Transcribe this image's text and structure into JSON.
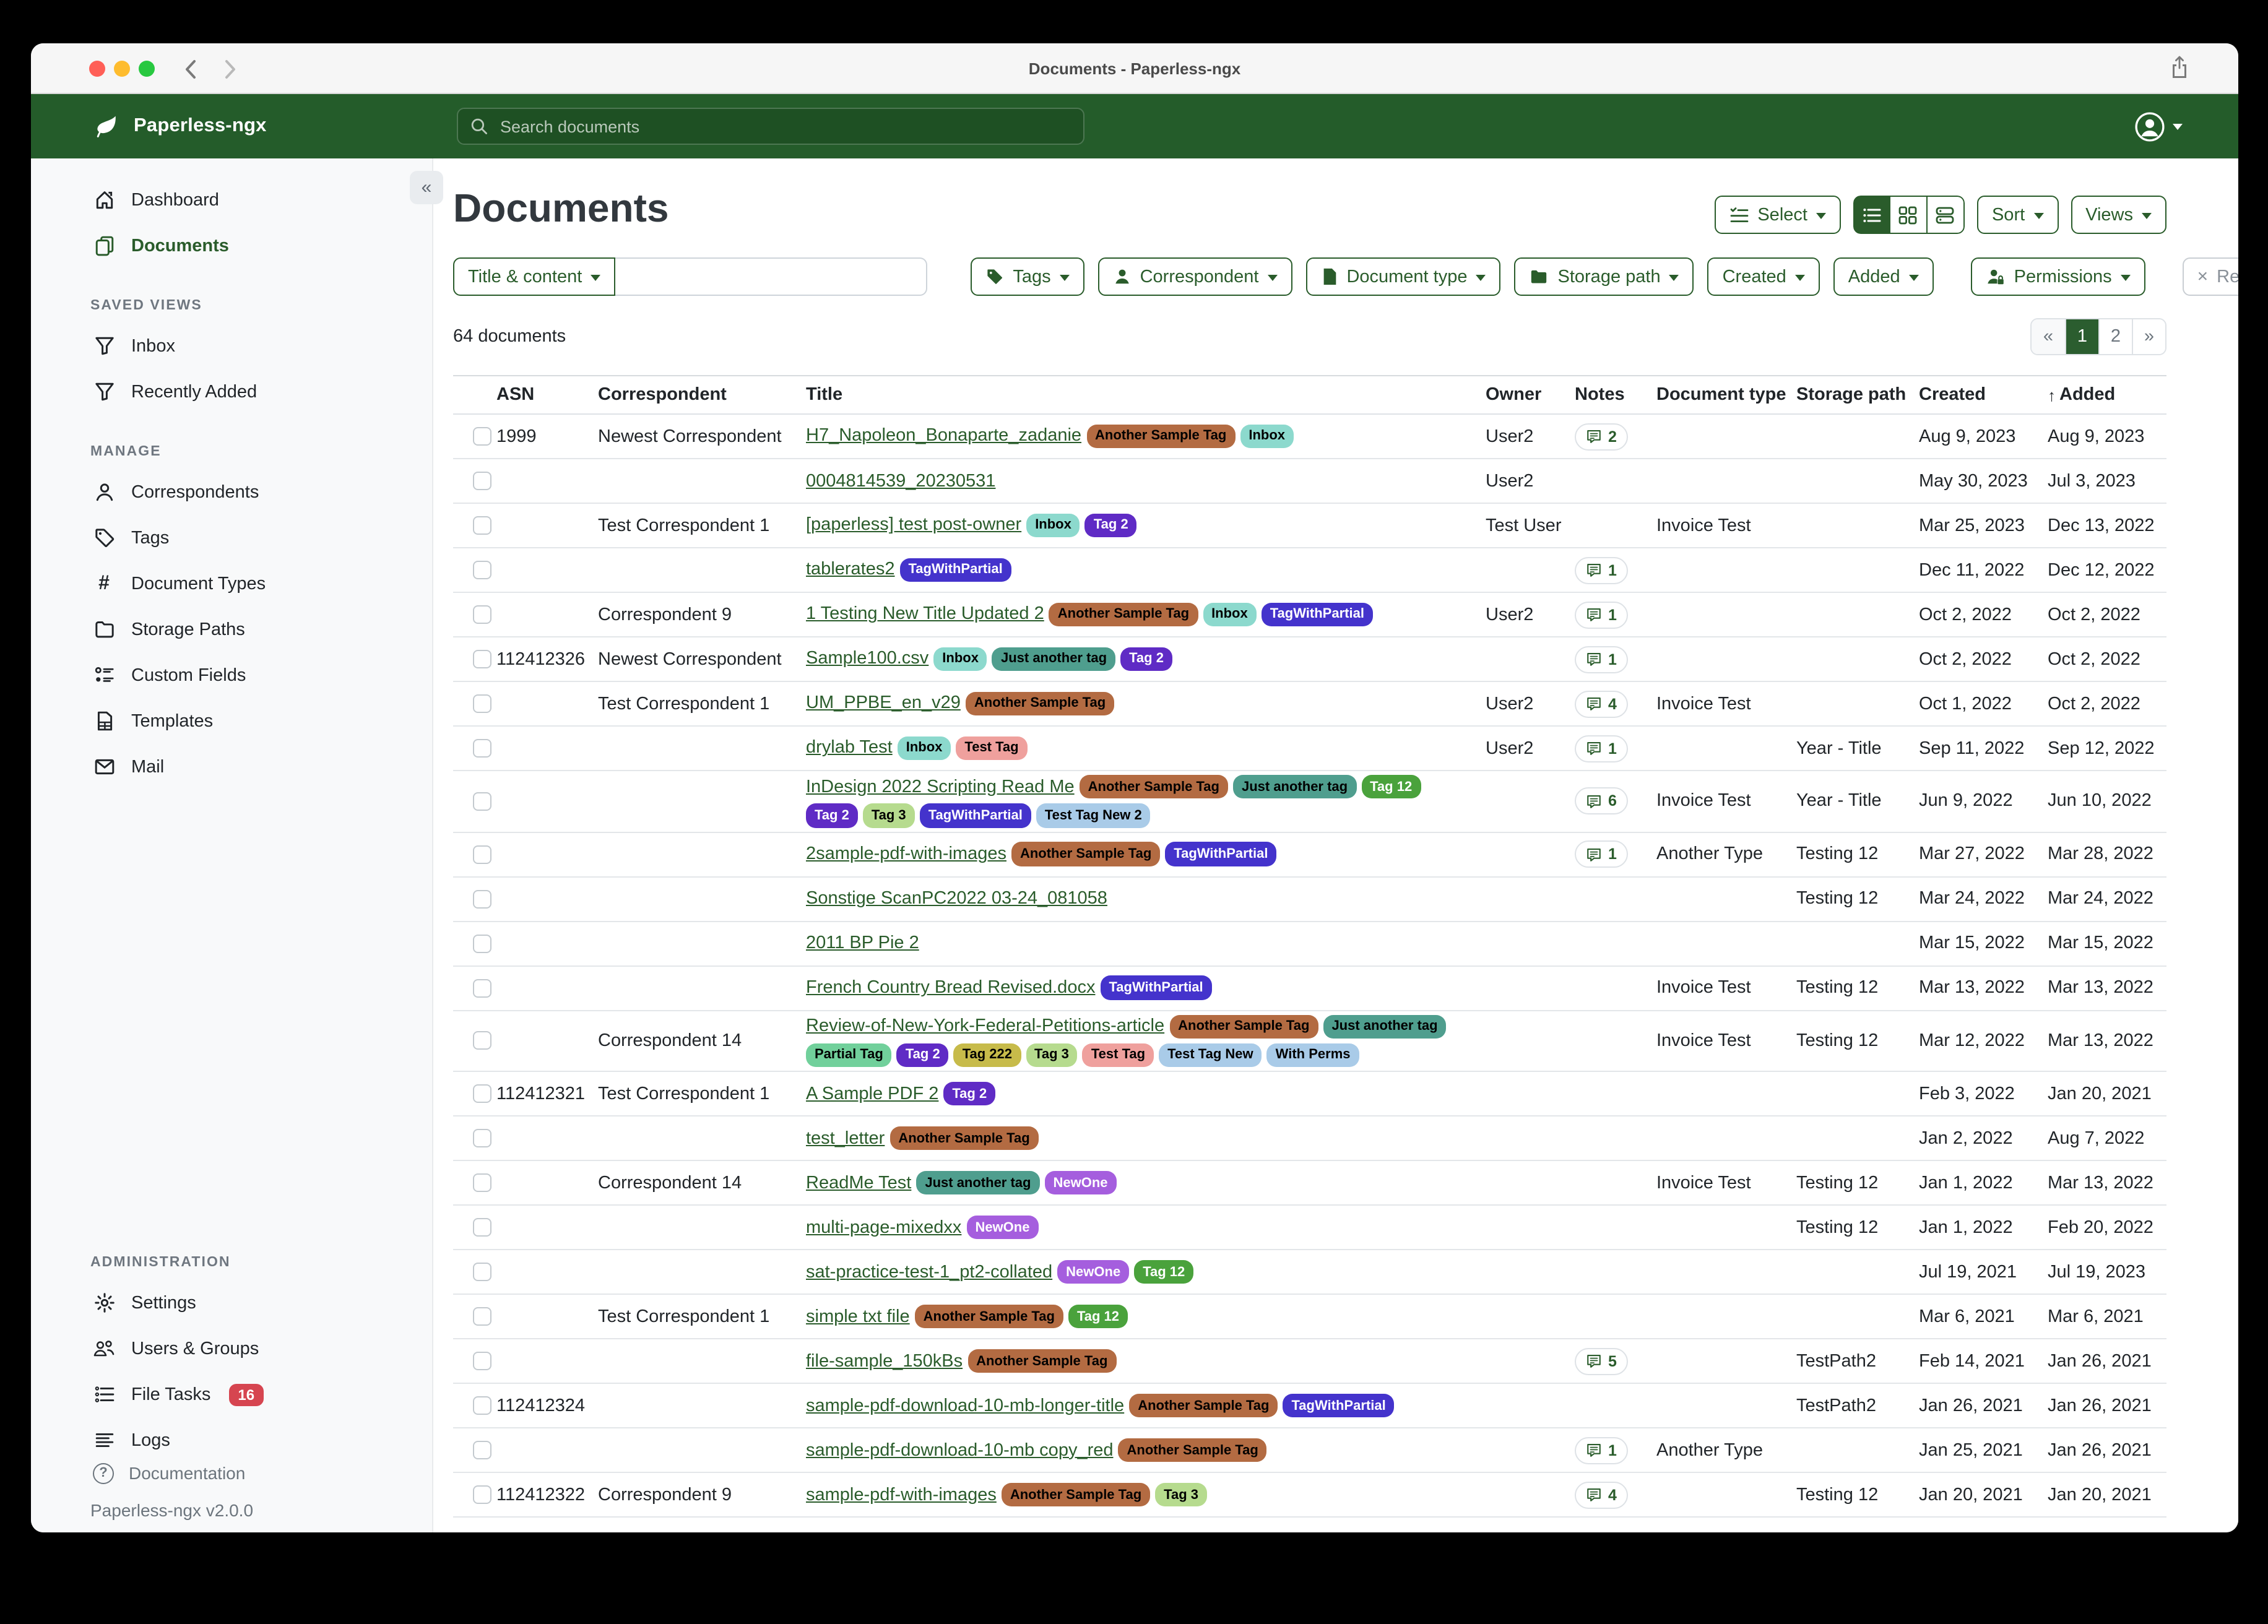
{
  "colors": {
    "accent_green": "#2a5c2b",
    "navbar_green": "#245c2a",
    "badge_red": "#d64550",
    "traffic_red": "#ff5f57",
    "traffic_yellow": "#febc2e",
    "traffic_green": "#28c840"
  },
  "titlebar": {
    "title": "Documents - Paperless-ngx",
    "back_icon": "chevron-left",
    "forward_icon": "chevron-right",
    "share_icon": "share"
  },
  "navbar": {
    "brand": "Paperless-ngx",
    "logo_icon": "leaf",
    "search_placeholder": "Search documents",
    "search_icon": "search",
    "user_icon": "person-circle"
  },
  "sidebar": {
    "collapse_icon": "«",
    "sections": [
      {
        "header": "",
        "items": [
          {
            "label": "Dashboard",
            "icon": "home"
          },
          {
            "label": "Documents",
            "icon": "copy",
            "active": true
          }
        ]
      },
      {
        "header": "SAVED VIEWS",
        "items": [
          {
            "label": "Inbox",
            "icon": "funnel"
          },
          {
            "label": "Recently Added",
            "icon": "funnel"
          }
        ]
      },
      {
        "header": "MANAGE",
        "items": [
          {
            "label": "Correspondents",
            "icon": "person"
          },
          {
            "label": "Tags",
            "icon": "tag"
          },
          {
            "label": "Document Types",
            "icon": "hash"
          },
          {
            "label": "Storage Paths",
            "icon": "folder"
          },
          {
            "label": "Custom Fields",
            "icon": "fields"
          },
          {
            "label": "Templates",
            "icon": "file"
          },
          {
            "label": "Mail",
            "icon": "mail"
          }
        ]
      },
      {
        "header": "ADMINISTRATION",
        "admin": true,
        "items": [
          {
            "label": "Settings",
            "icon": "gear"
          },
          {
            "label": "Users & Groups",
            "icon": "users"
          },
          {
            "label": "File Tasks",
            "icon": "tasks",
            "badge": "16"
          },
          {
            "label": "Logs",
            "icon": "logs"
          }
        ]
      }
    ],
    "footer": {
      "documentation": "Documentation",
      "version": "Paperless-ngx v2.0.0"
    }
  },
  "main": {
    "heading": "Documents",
    "count": "64 documents",
    "toolbar": {
      "select_label": "Select",
      "sort_label": "Sort",
      "views_label": "Views",
      "view_modes": [
        "list",
        "grid",
        "cards"
      ],
      "active_view": "list"
    },
    "filters": {
      "title_content_label": "Title & content",
      "search_value": "",
      "buttons": [
        {
          "label": "Tags",
          "icon": "tag-fill",
          "caret": true
        },
        {
          "label": "Correspondent",
          "icon": "person-fill",
          "caret": true
        },
        {
          "label": "Document type",
          "icon": "doc-fill",
          "caret": true
        },
        {
          "label": "Storage path",
          "icon": "folder-fill",
          "caret": true
        },
        {
          "label": "Created",
          "icon": "",
          "caret": true
        },
        {
          "label": "Added",
          "icon": "",
          "caret": true
        },
        {
          "label": "Permissions",
          "icon": "perms",
          "caret": true,
          "biggap": true
        },
        {
          "label": "Reset filters",
          "icon": "x",
          "caret": false,
          "muted": true,
          "biggap": true
        }
      ]
    },
    "pagination": {
      "items": [
        "«",
        "1",
        "2",
        "»"
      ],
      "active": "1"
    }
  },
  "table": {
    "headers": {
      "asn": "ASN",
      "correspondent": "Correspondent",
      "title": "Title",
      "owner": "Owner",
      "notes": "Notes",
      "doctype": "Document type",
      "storage": "Storage path",
      "created": "Created",
      "added": "Added",
      "sort_arrow": "↑"
    },
    "tag_palette": {
      "Another Sample Tag": {
        "bg": "#b36b42",
        "fg": "#000000"
      },
      "Inbox": {
        "bg": "#8cd9cd",
        "fg": "#000000"
      },
      "Tag 2": {
        "bg": "#5f2bc5",
        "fg": "#ffffff"
      },
      "TagWithPartial": {
        "bg": "#4433cc",
        "fg": "#ffffff"
      },
      "Just another tag": {
        "bg": "#4f9e8e",
        "fg": "#000000"
      },
      "Test Tag": {
        "bg": "#efa09d",
        "fg": "#000000"
      },
      "Tag 12": {
        "bg": "#4aa23c",
        "fg": "#ffffff"
      },
      "Tag 3": {
        "bg": "#b6db8e",
        "fg": "#000000"
      },
      "Test Tag New 2": {
        "bg": "#a9cbe8",
        "fg": "#000000"
      },
      "Partial Tag": {
        "bg": "#71d09b",
        "fg": "#000000"
      },
      "Tag 222": {
        "bg": "#c7bb4a",
        "fg": "#000000"
      },
      "Test Tag New": {
        "bg": "#a9cbe8",
        "fg": "#000000"
      },
      "With Perms": {
        "bg": "#a9cbe8",
        "fg": "#000000"
      },
      "NewOne": {
        "bg": "#a55ede",
        "fg": "#ffffff"
      }
    },
    "rows": [
      {
        "asn": "1999",
        "correspondent": "Newest Correspondent",
        "title": "H7_Napoleon_Bonaparte_zadanie",
        "tags": [
          "Another Sample Tag",
          "Inbox"
        ],
        "owner": "User2",
        "notes": "2",
        "doctype": "",
        "storage": "",
        "created": "Aug 9, 2023",
        "added": "Aug 9, 2023"
      },
      {
        "asn": "",
        "correspondent": "",
        "title": "0004814539_20230531",
        "tags": [],
        "owner": "User2",
        "notes": "",
        "doctype": "",
        "storage": "",
        "created": "May 30, 2023",
        "added": "Jul 3, 2023"
      },
      {
        "asn": "",
        "correspondent": "Test Correspondent 1",
        "title": "[paperless] test post-owner",
        "tags": [
          "Inbox",
          "Tag 2"
        ],
        "owner": "Test User",
        "notes": "",
        "doctype": "Invoice Test",
        "storage": "",
        "created": "Mar 25, 2023",
        "added": "Dec 13, 2022"
      },
      {
        "asn": "",
        "correspondent": "",
        "title": "tablerates2",
        "tags": [
          "TagWithPartial"
        ],
        "owner": "",
        "notes": "1",
        "doctype": "",
        "storage": "",
        "created": "Dec 11, 2022",
        "added": "Dec 12, 2022"
      },
      {
        "asn": "",
        "correspondent": "Correspondent 9",
        "title": "1 Testing New Title Updated 2",
        "tags": [
          "Another Sample Tag",
          "Inbox",
          "TagWithPartial"
        ],
        "owner": "User2",
        "notes": "1",
        "doctype": "",
        "storage": "",
        "created": "Oct 2, 2022",
        "added": "Oct 2, 2022"
      },
      {
        "asn": "112412326",
        "correspondent": "Newest Correspondent",
        "title": "Sample100.csv",
        "tags": [
          "Inbox",
          "Just another tag",
          "Tag 2"
        ],
        "owner": "",
        "notes": "1",
        "doctype": "",
        "storage": "",
        "created": "Oct 2, 2022",
        "added": "Oct 2, 2022"
      },
      {
        "asn": "",
        "correspondent": "Test Correspondent 1",
        "title": "UM_PPBE_en_v29",
        "tags": [
          "Another Sample Tag"
        ],
        "owner": "User2",
        "notes": "4",
        "doctype": "Invoice Test",
        "storage": "",
        "created": "Oct 1, 2022",
        "added": "Oct 2, 2022"
      },
      {
        "asn": "",
        "correspondent": "",
        "title": "drylab Test",
        "tags": [
          "Inbox",
          "Test Tag"
        ],
        "owner": "User2",
        "notes": "1",
        "doctype": "",
        "storage": "Year - Title",
        "created": "Sep 11, 2022",
        "added": "Sep 12, 2022"
      },
      {
        "asn": "",
        "correspondent": "",
        "title": "InDesign 2022 Scripting Read Me",
        "tags": [
          "Another Sample Tag",
          "Just another tag",
          "Tag 12",
          "Tag 2",
          "Tag 3",
          "TagWithPartial",
          "Test Tag New 2"
        ],
        "owner": "",
        "notes": "6",
        "doctype": "Invoice Test",
        "storage": "Year - Title",
        "created": "Jun 9, 2022",
        "added": "Jun 10, 2022"
      },
      {
        "asn": "",
        "correspondent": "",
        "title": "2sample-pdf-with-images",
        "tags": [
          "Another Sample Tag",
          "TagWithPartial"
        ],
        "owner": "",
        "notes": "1",
        "doctype": "Another Type",
        "storage": "Testing 12",
        "created": "Mar 27, 2022",
        "added": "Mar 28, 2022"
      },
      {
        "asn": "",
        "correspondent": "",
        "title": "Sonstige ScanPC2022 03-24_081058",
        "tags": [],
        "owner": "",
        "notes": "",
        "doctype": "",
        "storage": "Testing 12",
        "created": "Mar 24, 2022",
        "added": "Mar 24, 2022"
      },
      {
        "asn": "",
        "correspondent": "",
        "title": "2011 BP Pie 2",
        "tags": [],
        "owner": "",
        "notes": "",
        "doctype": "",
        "storage": "",
        "created": "Mar 15, 2022",
        "added": "Mar 15, 2022"
      },
      {
        "asn": "",
        "correspondent": "",
        "title": "French Country Bread Revised.docx",
        "tags": [
          "TagWithPartial"
        ],
        "owner": "",
        "notes": "",
        "doctype": "Invoice Test",
        "storage": "Testing 12",
        "created": "Mar 13, 2022",
        "added": "Mar 13, 2022"
      },
      {
        "asn": "",
        "correspondent": "Correspondent 14",
        "title": "Review-of-New-York-Federal-Petitions-article",
        "tags": [
          "Another Sample Tag",
          "Just another tag",
          "Partial Tag",
          "Tag 2",
          "Tag 222",
          "Tag 3",
          "Test Tag",
          "Test Tag New",
          "With Perms"
        ],
        "owner": "",
        "notes": "",
        "doctype": "Invoice Test",
        "storage": "Testing 12",
        "created": "Mar 12, 2022",
        "added": "Mar 13, 2022"
      },
      {
        "asn": "112412321",
        "correspondent": "Test Correspondent 1",
        "title": "A Sample PDF 2",
        "tags": [
          "Tag 2"
        ],
        "owner": "",
        "notes": "",
        "doctype": "",
        "storage": "",
        "created": "Feb 3, 2022",
        "added": "Jan 20, 2021"
      },
      {
        "asn": "",
        "correspondent": "",
        "title": "test_letter",
        "tags": [
          "Another Sample Tag"
        ],
        "owner": "",
        "notes": "",
        "doctype": "",
        "storage": "",
        "created": "Jan 2, 2022",
        "added": "Aug 7, 2022"
      },
      {
        "asn": "",
        "correspondent": "Correspondent 14",
        "title": "ReadMe Test",
        "tags": [
          "Just another tag",
          "NewOne"
        ],
        "owner": "",
        "notes": "",
        "doctype": "Invoice Test",
        "storage": "Testing 12",
        "created": "Jan 1, 2022",
        "added": "Mar 13, 2022"
      },
      {
        "asn": "",
        "correspondent": "",
        "title": "multi-page-mixedxx",
        "tags": [
          "NewOne"
        ],
        "owner": "",
        "notes": "",
        "doctype": "",
        "storage": "Testing 12",
        "created": "Jan 1, 2022",
        "added": "Feb 20, 2022"
      },
      {
        "asn": "",
        "correspondent": "",
        "title": "sat-practice-test-1_pt2-collated",
        "tags": [
          "NewOne",
          "Tag 12"
        ],
        "owner": "",
        "notes": "",
        "doctype": "",
        "storage": "",
        "created": "Jul 19, 2021",
        "added": "Jul 19, 2023"
      },
      {
        "asn": "",
        "correspondent": "Test Correspondent 1",
        "title": "simple txt file",
        "tags": [
          "Another Sample Tag",
          "Tag 12"
        ],
        "owner": "",
        "notes": "",
        "doctype": "",
        "storage": "",
        "created": "Mar 6, 2021",
        "added": "Mar 6, 2021"
      },
      {
        "asn": "",
        "correspondent": "",
        "title": "file-sample_150kBs",
        "tags": [
          "Another Sample Tag"
        ],
        "owner": "",
        "notes": "5",
        "doctype": "",
        "storage": "TestPath2",
        "created": "Feb 14, 2021",
        "added": "Jan 26, 2021"
      },
      {
        "asn": "112412324",
        "correspondent": "",
        "title": "sample-pdf-download-10-mb-longer-title",
        "tags": [
          "Another Sample Tag",
          "TagWithPartial"
        ],
        "owner": "",
        "notes": "",
        "doctype": "",
        "storage": "TestPath2",
        "created": "Jan 26, 2021",
        "added": "Jan 26, 2021"
      },
      {
        "asn": "",
        "correspondent": "",
        "title": "sample-pdf-download-10-mb copy_red",
        "tags": [
          "Another Sample Tag"
        ],
        "owner": "",
        "notes": "1",
        "doctype": "Another Type",
        "storage": "",
        "created": "Jan 25, 2021",
        "added": "Jan 26, 2021"
      },
      {
        "asn": "112412322",
        "correspondent": "Correspondent 9",
        "title": "sample-pdf-with-images",
        "tags": [
          "Another Sample Tag",
          "Tag 3"
        ],
        "owner": "",
        "notes": "4",
        "doctype": "",
        "storage": "Testing 12",
        "created": "Jan 20, 2021",
        "added": "Jan 20, 2021"
      }
    ]
  }
}
